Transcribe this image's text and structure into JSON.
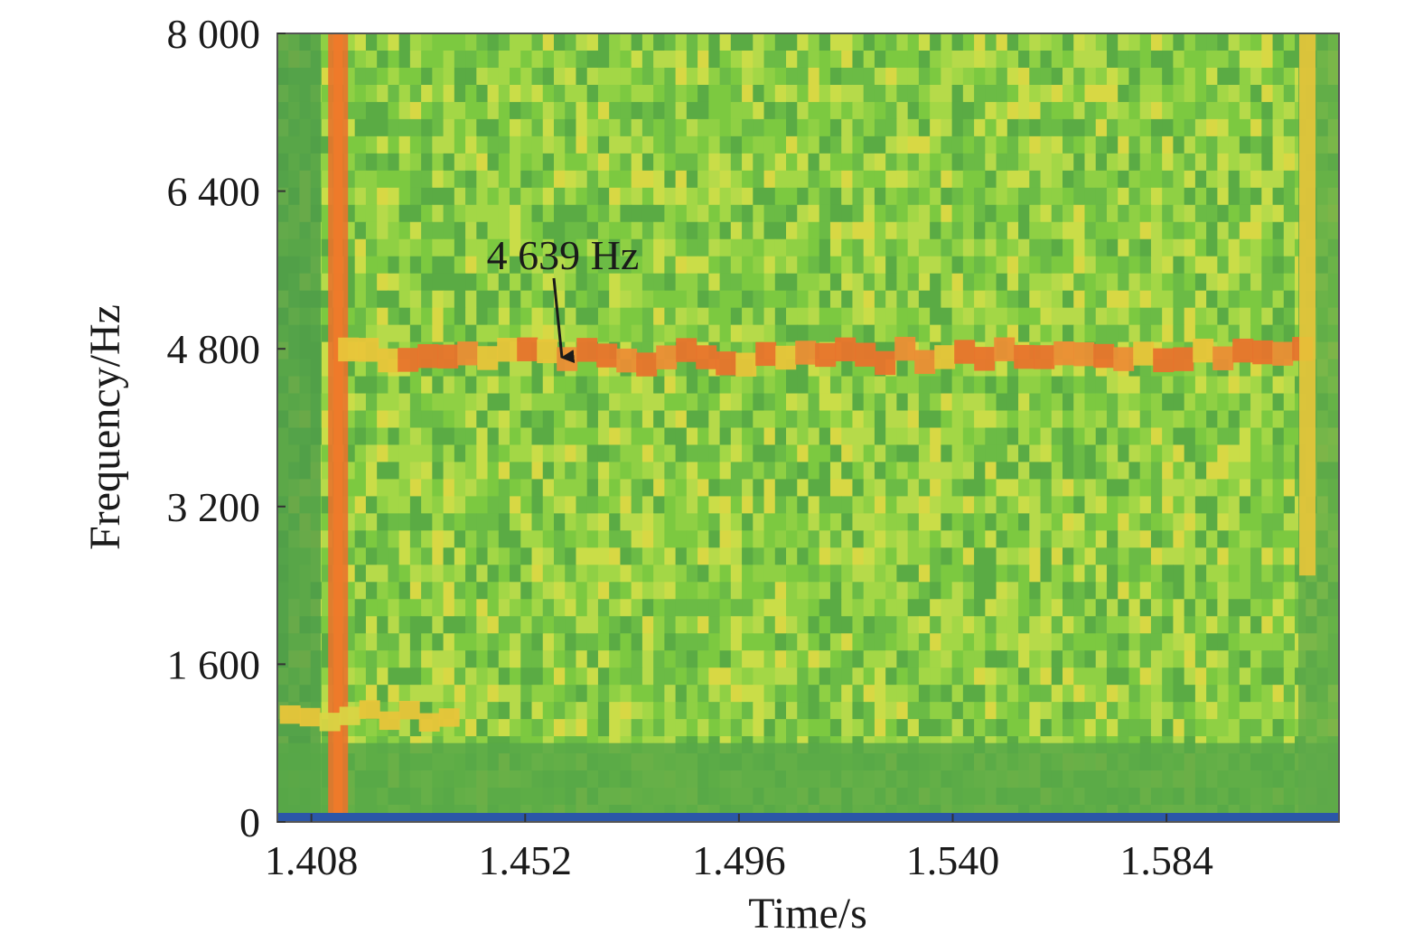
{
  "chart_data": {
    "type": "heatmap",
    "title": "",
    "xlabel": "Time/s",
    "ylabel": "Frequency/Hz",
    "xlim": [
      1.401,
      1.6195
    ],
    "ylim": [
      0,
      8000
    ],
    "x_ticks": [
      1.408,
      1.452,
      1.496,
      1.54,
      1.584
    ],
    "x_tick_labels": [
      "1.408",
      "1.452",
      "1.496",
      "1.540",
      "1.584"
    ],
    "y_ticks": [
      0,
      1600,
      3200,
      4800,
      6400,
      8000
    ],
    "y_tick_labels": [
      "0",
      "1 600",
      "3 200",
      "4 800",
      "6 400",
      "8 000"
    ],
    "grid": false,
    "colors": {
      "background": "#7cc940",
      "low": "#5aab44",
      "mid": "#b6da4a",
      "high": "#e8c53a",
      "peak": "#e8742c",
      "floor": "#2b57a8"
    },
    "features": [
      {
        "kind": "vertical_band",
        "x": 1.4135,
        "intensity": "peak"
      },
      {
        "kind": "horizontal_band",
        "y": 4639,
        "x_range": [
          1.4135,
          1.614
        ],
        "intensity": "peak"
      },
      {
        "kind": "horizontal_band",
        "y": 1000,
        "x_range": [
          1.4015,
          1.438
        ],
        "intensity": "high"
      },
      {
        "kind": "vertical_band",
        "x": 1.613,
        "y_range": [
          2500,
          8000
        ],
        "intensity": "high"
      }
    ],
    "annotations": [
      {
        "text": "4 639 Hz",
        "x": 1.4555,
        "y": 4639,
        "arrow": true
      }
    ]
  }
}
